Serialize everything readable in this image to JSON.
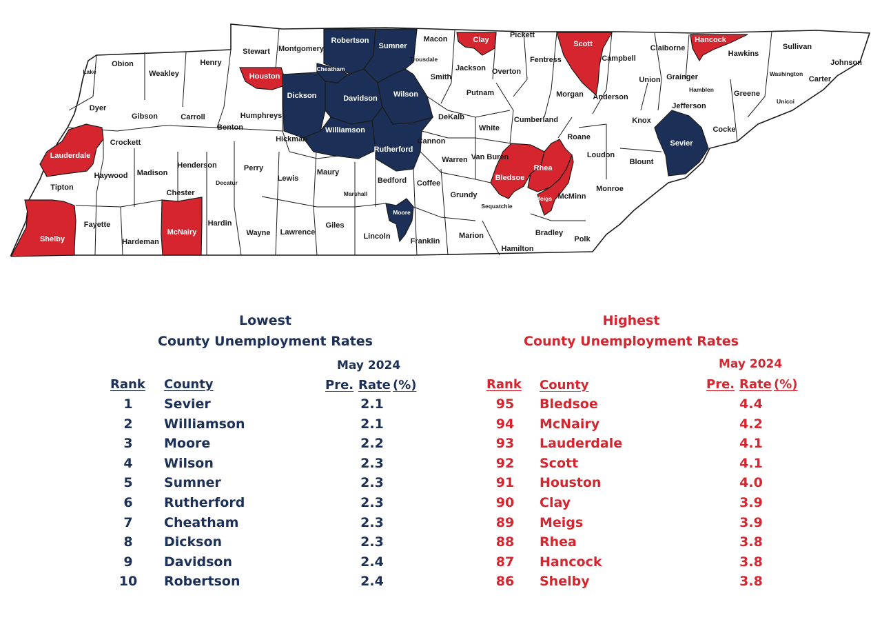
{
  "map": {
    "colors": {
      "lowest": "#1c3057",
      "highest": "#d5252f",
      "default": "#ffffff",
      "border": "#1a1a1a"
    },
    "counties": [
      {
        "id": "lake",
        "name": "Lake",
        "group": "none"
      },
      {
        "id": "obion",
        "name": "Obion",
        "group": "none"
      },
      {
        "id": "weakley",
        "name": "Weakley",
        "group": "none"
      },
      {
        "id": "henry",
        "name": "Henry",
        "group": "none"
      },
      {
        "id": "stewart",
        "name": "Stewart",
        "group": "none"
      },
      {
        "id": "montgomery",
        "name": "Montgomery",
        "group": "none"
      },
      {
        "id": "robertson",
        "name": "Robertson",
        "group": "lowest"
      },
      {
        "id": "sumner",
        "name": "Sumner",
        "group": "lowest"
      },
      {
        "id": "macon",
        "name": "Macon",
        "group": "none"
      },
      {
        "id": "clay",
        "name": "Clay",
        "group": "highest"
      },
      {
        "id": "pickett",
        "name": "Pickett",
        "group": "none"
      },
      {
        "id": "scott",
        "name": "Scott",
        "group": "highest"
      },
      {
        "id": "campbell",
        "name": "Campbell",
        "group": "none"
      },
      {
        "id": "claiborne",
        "name": "Claiborne",
        "group": "none"
      },
      {
        "id": "hancock",
        "name": "Hancock",
        "group": "highest"
      },
      {
        "id": "hawkins",
        "name": "Hawkins",
        "group": "none"
      },
      {
        "id": "sullivan",
        "name": "Sullivan",
        "group": "none"
      },
      {
        "id": "johnson",
        "name": "Johnson",
        "group": "none"
      },
      {
        "id": "dyer",
        "name": "Dyer",
        "group": "none"
      },
      {
        "id": "gibson",
        "name": "Gibson",
        "group": "none"
      },
      {
        "id": "carroll",
        "name": "Carroll",
        "group": "none"
      },
      {
        "id": "benton",
        "name": "Benton",
        "group": "none"
      },
      {
        "id": "houston",
        "name": "Houston",
        "group": "highest"
      },
      {
        "id": "humphreys",
        "name": "Humphreys",
        "group": "none"
      },
      {
        "id": "dickson",
        "name": "Dickson",
        "group": "lowest"
      },
      {
        "id": "cheatham",
        "name": "Cheatham",
        "group": "lowest"
      },
      {
        "id": "davidson",
        "name": "Davidson",
        "group": "lowest"
      },
      {
        "id": "wilson",
        "name": "Wilson",
        "group": "lowest"
      },
      {
        "id": "trousdale",
        "name": "Trousdale",
        "group": "none"
      },
      {
        "id": "smith",
        "name": "Smith",
        "group": "none"
      },
      {
        "id": "jackson",
        "name": "Jackson",
        "group": "none"
      },
      {
        "id": "overton",
        "name": "Overton",
        "group": "none"
      },
      {
        "id": "fentress",
        "name": "Fentress",
        "group": "none"
      },
      {
        "id": "putnam",
        "name": "Putnam",
        "group": "none"
      },
      {
        "id": "morgan",
        "name": "Morgan",
        "group": "none"
      },
      {
        "id": "anderson",
        "name": "Anderson",
        "group": "none"
      },
      {
        "id": "union",
        "name": "Union",
        "group": "none"
      },
      {
        "id": "grainger",
        "name": "Grainger",
        "group": "none"
      },
      {
        "id": "hamblen",
        "name": "Hamblen",
        "group": "none"
      },
      {
        "id": "jefferson",
        "name": "Jefferson",
        "group": "none"
      },
      {
        "id": "greene",
        "name": "Greene",
        "group": "none"
      },
      {
        "id": "washington",
        "name": "Washington",
        "group": "none"
      },
      {
        "id": "unicoi",
        "name": "Unicoi",
        "group": "none"
      },
      {
        "id": "carter",
        "name": "Carter",
        "group": "none"
      },
      {
        "id": "lauderdale",
        "name": "Lauderdale",
        "group": "highest"
      },
      {
        "id": "crockett",
        "name": "Crockett",
        "group": "none"
      },
      {
        "id": "haywood",
        "name": "Haywood",
        "group": "none"
      },
      {
        "id": "madison",
        "name": "Madison",
        "group": "none"
      },
      {
        "id": "henderson",
        "name": "Henderson",
        "group": "none"
      },
      {
        "id": "decatur",
        "name": "Decatur",
        "group": "none"
      },
      {
        "id": "perry",
        "name": "Perry",
        "group": "none"
      },
      {
        "id": "hickman",
        "name": "Hickman",
        "group": "none"
      },
      {
        "id": "williamson",
        "name": "Williamson",
        "group": "lowest"
      },
      {
        "id": "rutherford",
        "name": "Rutherford",
        "group": "lowest"
      },
      {
        "id": "cannon",
        "name": "Cannon",
        "group": "none"
      },
      {
        "id": "dekalb",
        "name": "DeKalb",
        "group": "none"
      },
      {
        "id": "white",
        "name": "White",
        "group": "none"
      },
      {
        "id": "cumberland",
        "name": "Cumberland",
        "group": "none"
      },
      {
        "id": "roane",
        "name": "Roane",
        "group": "none"
      },
      {
        "id": "knox",
        "name": "Knox",
        "group": "none"
      },
      {
        "id": "sevier",
        "name": "Sevier",
        "group": "lowest"
      },
      {
        "id": "cocke",
        "name": "Cocke",
        "group": "none"
      },
      {
        "id": "tipton",
        "name": "Tipton",
        "group": "none"
      },
      {
        "id": "shelby",
        "name": "Shelby",
        "group": "highest"
      },
      {
        "id": "fayette",
        "name": "Fayette",
        "group": "none"
      },
      {
        "id": "hardeman",
        "name": "Hardeman",
        "group": "none"
      },
      {
        "id": "chester",
        "name": "Chester",
        "group": "none"
      },
      {
        "id": "mcnairy",
        "name": "McNairy",
        "group": "highest"
      },
      {
        "id": "hardin",
        "name": "Hardin",
        "group": "none"
      },
      {
        "id": "wayne",
        "name": "Wayne",
        "group": "none"
      },
      {
        "id": "lewis",
        "name": "Lewis",
        "group": "none"
      },
      {
        "id": "lawrence",
        "name": "Lawrence",
        "group": "none"
      },
      {
        "id": "maury",
        "name": "Maury",
        "group": "none"
      },
      {
        "id": "giles",
        "name": "Giles",
        "group": "none"
      },
      {
        "id": "marshall",
        "name": "Marshall",
        "group": "none"
      },
      {
        "id": "bedford",
        "name": "Bedford",
        "group": "none"
      },
      {
        "id": "lincoln",
        "name": "Lincoln",
        "group": "none"
      },
      {
        "id": "moore",
        "name": "Moore",
        "group": "lowest"
      },
      {
        "id": "coffee",
        "name": "Coffee",
        "group": "none"
      },
      {
        "id": "franklin",
        "name": "Franklin",
        "group": "none"
      },
      {
        "id": "warren",
        "name": "Warren",
        "group": "none"
      },
      {
        "id": "grundy",
        "name": "Grundy",
        "group": "none"
      },
      {
        "id": "vanburen",
        "name": "Van Buren",
        "group": "none"
      },
      {
        "id": "sequatchie",
        "name": "Sequatchie",
        "group": "none"
      },
      {
        "id": "marion",
        "name": "Marion",
        "group": "none"
      },
      {
        "id": "bledsoe",
        "name": "Bledsoe",
        "group": "highest"
      },
      {
        "id": "rhea",
        "name": "Rhea",
        "group": "highest"
      },
      {
        "id": "meigs",
        "name": "Meigs",
        "group": "highest"
      },
      {
        "id": "hamilton",
        "name": "Hamilton",
        "group": "none"
      },
      {
        "id": "mcminn",
        "name": "McMinn",
        "group": "none"
      },
      {
        "id": "bradley",
        "name": "Bradley",
        "group": "none"
      },
      {
        "id": "polk",
        "name": "Polk",
        "group": "none"
      },
      {
        "id": "loudon",
        "name": "Loudon",
        "group": "none"
      },
      {
        "id": "blount",
        "name": "Blount",
        "group": "none"
      },
      {
        "id": "monroe",
        "name": "Monroe",
        "group": "none"
      }
    ]
  },
  "lowest": {
    "title_line1": "Lowest",
    "title_line2": "County Unemployment Rates",
    "period": "May 2024",
    "headers": {
      "rank": "Rank",
      "county": "County",
      "pre": "Pre.",
      "rate": "Rate",
      "pct": "(%)"
    },
    "rows": [
      {
        "rank": "1",
        "county": "Sevier",
        "rate": "2.1"
      },
      {
        "rank": "2",
        "county": "Williamson",
        "rate": "2.1"
      },
      {
        "rank": "3",
        "county": "Moore",
        "rate": "2.2"
      },
      {
        "rank": "4",
        "county": "Wilson",
        "rate": "2.3"
      },
      {
        "rank": "5",
        "county": "Sumner",
        "rate": "2.3"
      },
      {
        "rank": "6",
        "county": "Rutherford",
        "rate": "2.3"
      },
      {
        "rank": "7",
        "county": "Cheatham",
        "rate": "2.3"
      },
      {
        "rank": "8",
        "county": "Dickson",
        "rate": "2.3"
      },
      {
        "rank": "9",
        "county": "Davidson",
        "rate": "2.4"
      },
      {
        "rank": "10",
        "county": "Robertson",
        "rate": "2.4"
      }
    ]
  },
  "highest": {
    "title_line1": "Highest",
    "title_line2": "County Unemployment Rates",
    "period": "May 2024",
    "headers": {
      "rank": "Rank",
      "county": "County",
      "pre": "Pre.",
      "rate": "Rate",
      "pct": "(%)"
    },
    "rows": [
      {
        "rank": "95",
        "county": "Bledsoe",
        "rate": "4.4"
      },
      {
        "rank": "94",
        "county": "McNairy",
        "rate": "4.2"
      },
      {
        "rank": "93",
        "county": "Lauderdale",
        "rate": "4.1"
      },
      {
        "rank": "92",
        "county": "Scott",
        "rate": "4.1"
      },
      {
        "rank": "91",
        "county": "Houston",
        "rate": "4.0"
      },
      {
        "rank": "90",
        "county": "Clay",
        "rate": "3.9"
      },
      {
        "rank": "89",
        "county": "Meigs",
        "rate": "3.9"
      },
      {
        "rank": "88",
        "county": "Rhea",
        "rate": "3.8"
      },
      {
        "rank": "87",
        "county": "Hancock",
        "rate": "3.8"
      },
      {
        "rank": "86",
        "county": "Shelby",
        "rate": "3.8"
      }
    ]
  }
}
